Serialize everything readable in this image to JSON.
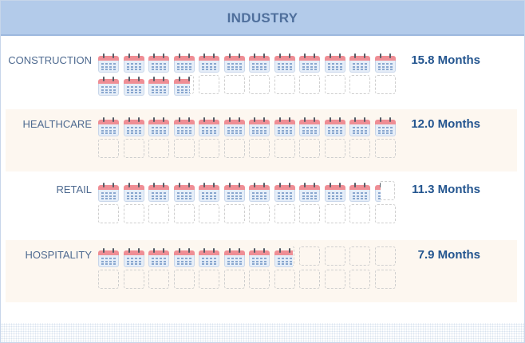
{
  "header": {
    "title": "INDUSTRY"
  },
  "chart_data": {
    "type": "pictograph",
    "title": "INDUSTRY",
    "unit": "Months",
    "icon": "calendar-icon",
    "capacity_per_row": 24,
    "categories": [
      "CONSTRUCTION",
      "HEALTHCARE",
      "RETAIL",
      "HOSPITALITY"
    ],
    "values": [
      15.8,
      12.0,
      11.3,
      7.9
    ],
    "value_labels": [
      "15.8 Months",
      "12.0 Months",
      "11.3 Months",
      "7.9 Months"
    ]
  },
  "colors": {
    "header_bg": "#b3cbea",
    "calendar_top": "#ef8e95",
    "calendar_body": "#e6eef8",
    "value_text": "#23558f",
    "row_shade": "#fdf7f0"
  }
}
